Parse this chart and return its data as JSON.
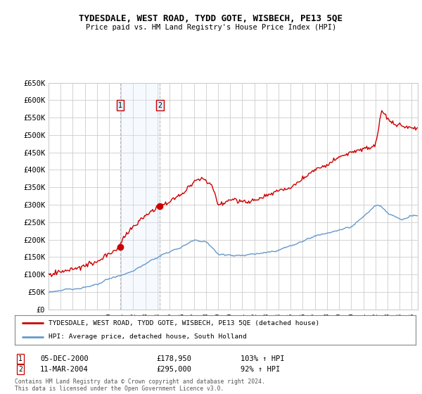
{
  "title": "TYDESDALE, WEST ROAD, TYDD GOTE, WISBECH, PE13 5QE",
  "subtitle": "Price paid vs. HM Land Registry's House Price Index (HPI)",
  "legend_line1": "TYDESDALE, WEST ROAD, TYDD GOTE, WISBECH, PE13 5QE (detached house)",
  "legend_line2": "HPI: Average price, detached house, South Holland",
  "sale1_date": "05-DEC-2000",
  "sale1_price": "£178,950",
  "sale1_hpi": "103% ↑ HPI",
  "sale2_date": "11-MAR-2004",
  "sale2_price": "£295,000",
  "sale2_hpi": "92% ↑ HPI",
  "footer": "Contains HM Land Registry data © Crown copyright and database right 2024.\nThis data is licensed under the Open Government Licence v3.0.",
  "red_color": "#cc0000",
  "blue_color": "#6699cc",
  "bg_color": "#ffffff",
  "grid_color": "#cccccc",
  "annotation_bg": "#ddeeff",
  "shade_color": "#ddeeff",
  "ylim": [
    0,
    650000
  ],
  "yticks": [
    0,
    50000,
    100000,
    150000,
    200000,
    250000,
    300000,
    350000,
    400000,
    450000,
    500000,
    550000,
    600000,
    650000
  ],
  "sale1_x": 2000.92,
  "sale1_y": 178950,
  "sale2_x": 2004.2,
  "sale2_y": 295000,
  "xmin": 1995,
  "xmax": 2025.5
}
